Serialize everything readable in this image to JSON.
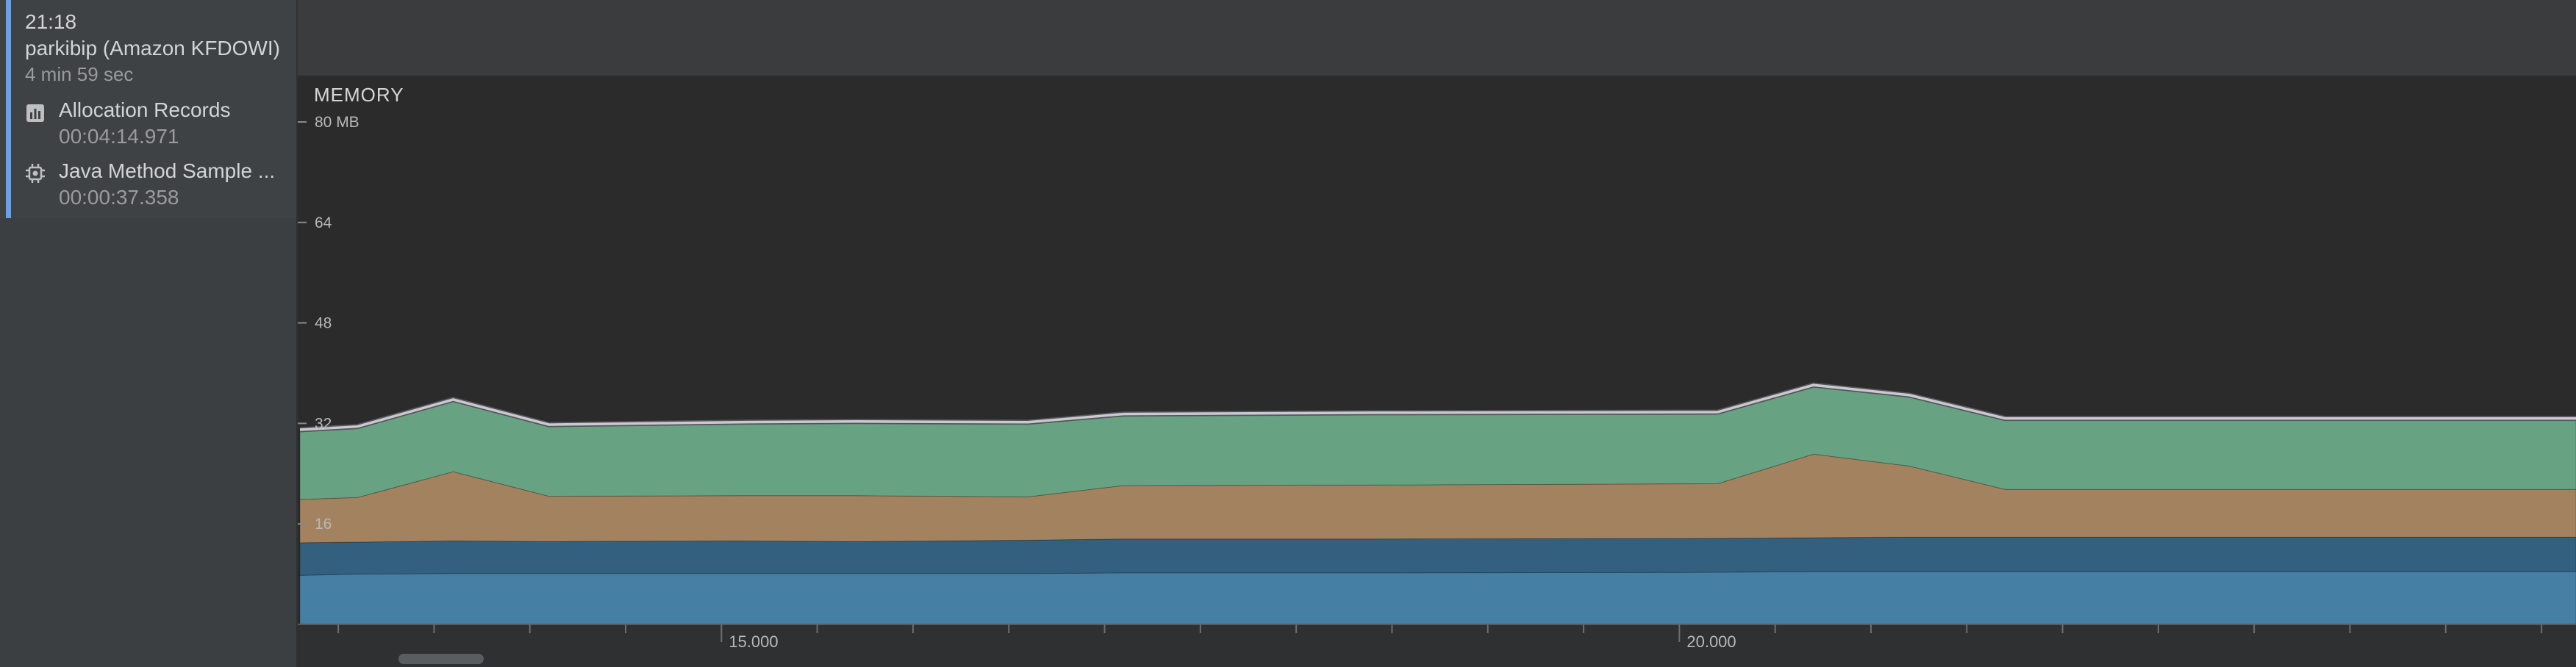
{
  "sidebar": {
    "session": {
      "time": "21:18",
      "device": "parkibip (Amazon KFDOWI)",
      "duration": "4 min 59 sec"
    },
    "records": [
      {
        "icon": "bar-chart-icon",
        "name": "Allocation Records",
        "time": "00:04:14.971"
      },
      {
        "icon": "cpu-chip-icon",
        "name": "Java Method Sample ...",
        "time": "00:00:37.358"
      }
    ]
  },
  "chart_data": {
    "type": "area",
    "title": "MEMORY",
    "stacked": true,
    "y_unit": "MB",
    "y_ticks": [
      {
        "value": 80,
        "label": "80 MB"
      },
      {
        "value": 64,
        "label": "64"
      },
      {
        "value": 48,
        "label": "48"
      },
      {
        "value": 32,
        "label": "32"
      },
      {
        "value": 16,
        "label": "16"
      }
    ],
    "ylim": [
      0,
      80
    ],
    "x_ticks": [
      {
        "value": 15.0,
        "label": "15.000"
      },
      {
        "value": 20.0,
        "label": "20.000"
      }
    ],
    "xlim": [
      12.8,
      24.68
    ],
    "x": [
      12.8,
      13.1,
      13.6,
      14.1,
      15.1,
      15.7,
      16.6,
      17.1,
      18.4,
      20.2,
      20.7,
      21.2,
      21.7,
      22.2,
      24.68
    ],
    "series": [
      {
        "color": "#4580a4",
        "values": [
          7.8,
          8.0,
          8.1,
          8.1,
          8.1,
          8.1,
          8.1,
          8.2,
          8.2,
          8.3,
          8.4,
          8.4,
          8.4,
          8.4,
          8.4
        ]
      },
      {
        "color": "#33607e",
        "values": [
          5.2,
          5.1,
          5.2,
          5.1,
          5.2,
          5.1,
          5.3,
          5.4,
          5.4,
          5.4,
          5.4,
          5.5,
          5.5,
          5.5,
          5.5
        ]
      },
      {
        "color": "#a3825f",
        "values": [
          6.9,
          7.1,
          11.0,
          7.2,
          7.2,
          7.3,
          6.9,
          8.5,
          8.6,
          8.7,
          13.3,
          11.3,
          7.6,
          7.6,
          7.6
        ]
      },
      {
        "color": "#67a383",
        "values": [
          11.1,
          11.3,
          11.5,
          11.4,
          11.7,
          11.8,
          11.9,
          11.4,
          11.5,
          11.4,
          11.0,
          11.3,
          11.3,
          11.3,
          11.3
        ]
      }
    ],
    "total_line_color": "#c9c9cf",
    "grid": false,
    "legend": "none"
  }
}
